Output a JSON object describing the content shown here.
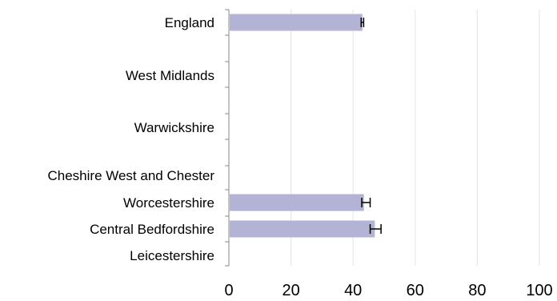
{
  "chart_data": {
    "type": "bar",
    "orientation": "horizontal",
    "categories": [
      "England",
      "West Midlands",
      "Warwickshire",
      "Cheshire West and Chester",
      "Worcestershire",
      "Central Bedfordshire",
      "Leicestershire"
    ],
    "series": [
      {
        "values": [
          43,
          null,
          null,
          null,
          43.5,
          47,
          null
        ],
        "error_low": [
          42.6,
          null,
          null,
          null,
          42.8,
          45.5,
          null
        ],
        "error_high": [
          43.4,
          null,
          null,
          null,
          45.5,
          49,
          null
        ],
        "color": "#b3b3d6"
      }
    ],
    "xlim": [
      0,
      100
    ],
    "xticks": [
      "0",
      "20",
      "40",
      "60",
      "80",
      "100"
    ],
    "grid": "vertical",
    "legend": "none",
    "title": "",
    "xlabel": "",
    "ylabel": ""
  }
}
